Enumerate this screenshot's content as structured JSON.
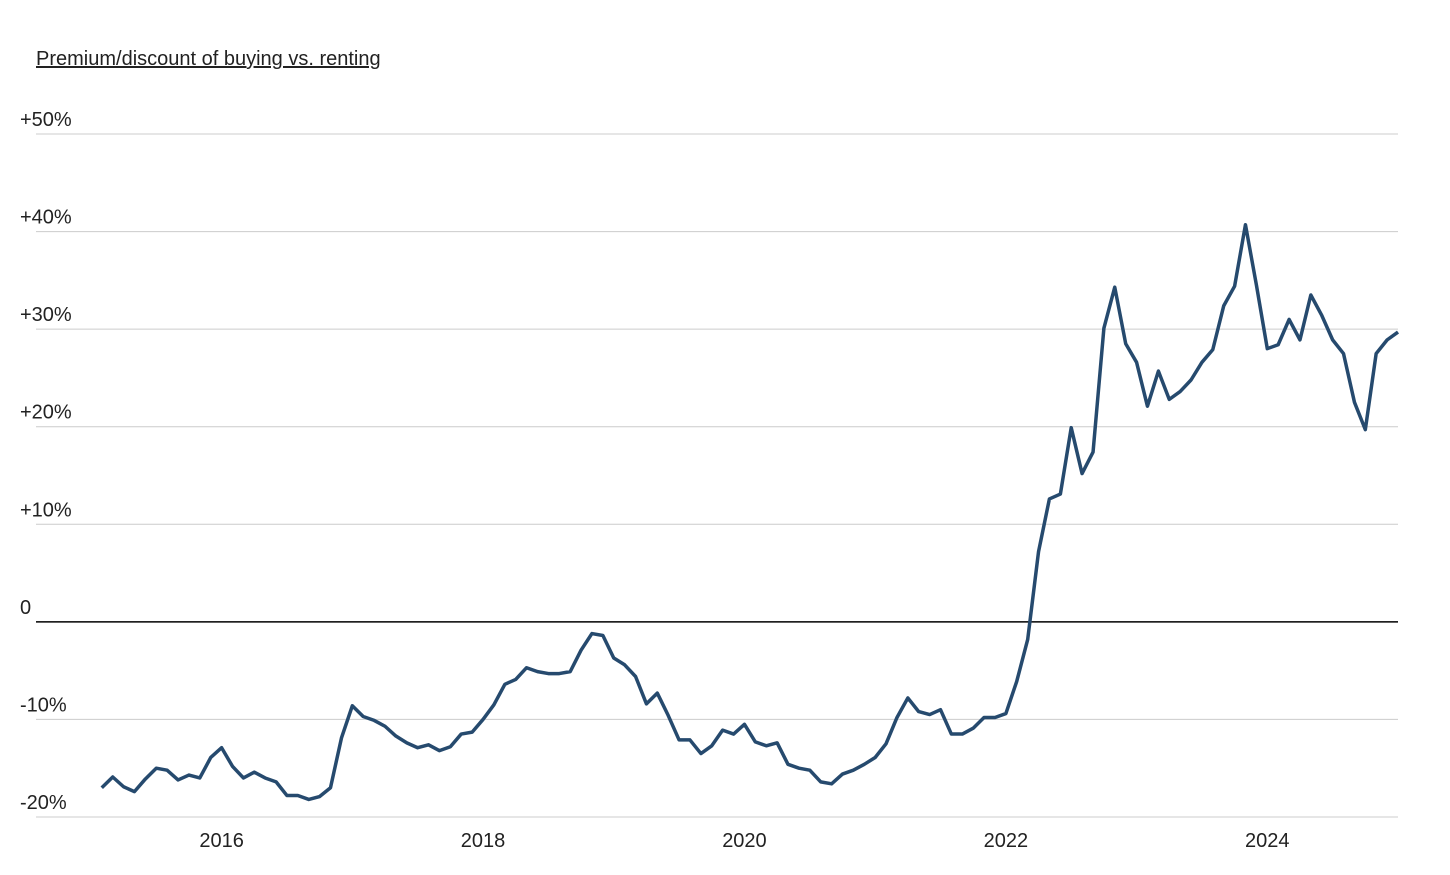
{
  "chart_data": {
    "type": "line",
    "title": "Premium/discount of buying vs. renting",
    "x": [
      2015.083,
      2015.167,
      2015.25,
      2015.333,
      2015.417,
      2015.5,
      2015.583,
      2015.667,
      2015.75,
      2015.833,
      2015.917,
      2016,
      2016.083,
      2016.167,
      2016.25,
      2016.333,
      2016.417,
      2016.5,
      2016.583,
      2016.667,
      2016.75,
      2016.833,
      2016.917,
      2017,
      2017.083,
      2017.167,
      2017.25,
      2017.333,
      2017.417,
      2017.5,
      2017.583,
      2017.667,
      2017.75,
      2017.833,
      2017.917,
      2018,
      2018.083,
      2018.167,
      2018.25,
      2018.333,
      2018.417,
      2018.5,
      2018.583,
      2018.667,
      2018.75,
      2018.833,
      2018.917,
      2019,
      2019.083,
      2019.167,
      2019.25,
      2019.333,
      2019.417,
      2019.5,
      2019.583,
      2019.667,
      2019.75,
      2019.833,
      2019.917,
      2020,
      2020.083,
      2020.167,
      2020.25,
      2020.333,
      2020.417,
      2020.5,
      2020.583,
      2020.667,
      2020.75,
      2020.833,
      2020.917,
      2021,
      2021.083,
      2021.167,
      2021.25,
      2021.333,
      2021.417,
      2021.5,
      2021.583,
      2021.667,
      2021.75,
      2021.833,
      2021.917,
      2022,
      2022.083,
      2022.167,
      2022.25,
      2022.333,
      2022.417,
      2022.5,
      2022.583,
      2022.667,
      2022.75,
      2022.833,
      2022.917,
      2023,
      2023.083,
      2023.167,
      2023.25,
      2023.333,
      2023.417,
      2023.5,
      2023.583,
      2023.667,
      2023.75,
      2023.833,
      2023.917,
      2024,
      2024.083,
      2024.167,
      2024.25,
      2024.333,
      2024.417,
      2024.5,
      2024.583,
      2024.667,
      2024.75,
      2024.833,
      2024.917,
      2025
    ],
    "series": [
      {
        "color": "#264a6e",
        "values": [
          -17.0,
          -15.9,
          -16.9,
          -17.4,
          -16.1,
          -15.0,
          -15.2,
          -16.2,
          -15.7,
          -16.0,
          -13.9,
          -12.9,
          -14.8,
          -16.0,
          -15.4,
          -16.0,
          -16.4,
          -17.8,
          -17.8,
          -18.2,
          -17.9,
          -17.0,
          -11.9,
          -8.6,
          -9.7,
          -10.1,
          -10.7,
          -11.7,
          -12.4,
          -12.9,
          -12.6,
          -13.2,
          -12.8,
          -11.5,
          -11.3,
          -10.0,
          -8.5,
          -6.4,
          -5.9,
          -4.7,
          -5.1,
          -5.3,
          -5.3,
          -5.1,
          -2.9,
          -1.2,
          -1.4,
          -3.7,
          -4.4,
          -5.6,
          -8.4,
          -7.3,
          -9.6,
          -12.1,
          -12.1,
          -13.5,
          -12.7,
          -11.1,
          -11.5,
          -10.5,
          -12.3,
          -12.7,
          -12.4,
          -14.6,
          -15.0,
          -15.2,
          -16.4,
          -16.6,
          -15.6,
          -15.2,
          -14.6,
          -13.9,
          -12.5,
          -9.8,
          -7.8,
          -9.2,
          -9.5,
          -9.0,
          -11.5,
          -11.5,
          -10.9,
          -9.8,
          -9.8,
          -9.4,
          -6.1,
          -1.8,
          7.2,
          12.6,
          13.1,
          19.9,
          15.2,
          17.4,
          30.1,
          34.3,
          28.5,
          26.6,
          22.1,
          25.7,
          22.8,
          23.6,
          24.8,
          26.6,
          27.9,
          32.4,
          34.4,
          40.7,
          34.5,
          28.0,
          28.4,
          31.0,
          28.9,
          33.5,
          31.4,
          28.9,
          27.5,
          22.5,
          19.7,
          27.5,
          28.9,
          29.7
        ]
      }
    ],
    "xlim": [
      2014.58,
      2025.0
    ],
    "xticks": [
      2016,
      2018,
      2020,
      2022,
      2024
    ],
    "ylim": [
      -20,
      50
    ],
    "yticks": [
      {
        "value": -20,
        "label": "-20%"
      },
      {
        "value": -10,
        "label": "-10%"
      },
      0,
      {
        "value": 10,
        "label": "+10%"
      },
      {
        "value": 20,
        "label": "+20%"
      },
      {
        "value": 30,
        "label": "+30%"
      },
      {
        "value": 40,
        "label": "+40%"
      },
      {
        "value": 50,
        "label": "+50%"
      }
    ],
    "grid": true
  }
}
